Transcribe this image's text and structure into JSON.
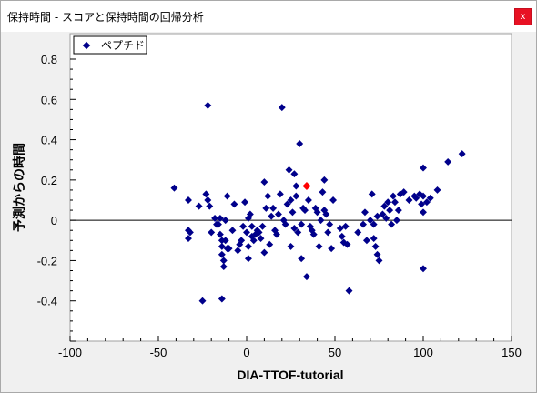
{
  "window": {
    "title": "保持時間 - スコアと保持時間の回帰分析",
    "close_label": "x"
  },
  "colors": {
    "series": "#00008b",
    "highlight": "#ff0000",
    "plot_background": "#ffffff",
    "chart_background": "#f0f0f0",
    "zero_line": "#000000"
  },
  "chart_data": {
    "type": "scatter",
    "title": "",
    "xlabel": "DIA-TTOF-tutorial",
    "ylabel": "予測からの時間",
    "xlim": [
      -100,
      150
    ],
    "ylim": [
      -0.6,
      0.8
    ],
    "xticks": [
      -100,
      -50,
      0,
      50,
      100,
      150
    ],
    "yticks": [
      0.8,
      0.6,
      0.4,
      0.2,
      0,
      -0.2,
      -0.4
    ],
    "legend": {
      "position": "top-left",
      "entries": [
        "ペプチド"
      ]
    },
    "reference_line_y": 0,
    "grid": false,
    "series": [
      {
        "name": "ペプチド",
        "color": "#00008b",
        "marker": "diamond",
        "points": [
          [
            -41,
            0.16
          ],
          [
            -33,
            0.1
          ],
          [
            -33,
            -0.05
          ],
          [
            -32,
            -0.06
          ],
          [
            -33,
            -0.09
          ],
          [
            -27,
            0.07
          ],
          [
            -25,
            -0.4
          ],
          [
            -23,
            0.13
          ],
          [
            -22,
            0.57
          ],
          [
            -22,
            0.1
          ],
          [
            -21,
            0.07
          ],
          [
            -20,
            -0.06
          ],
          [
            -18,
            0.01
          ],
          [
            -17,
            -0.02
          ],
          [
            -16,
            -0.02
          ],
          [
            -15,
            0.01
          ],
          [
            -15,
            -0.07
          ],
          [
            -14,
            -0.1
          ],
          [
            -14,
            -0.13
          ],
          [
            -14,
            -0.17
          ],
          [
            -14,
            -0.39
          ],
          [
            -13,
            -0.2
          ],
          [
            -13,
            -0.23
          ],
          [
            -12,
            0.0
          ],
          [
            -12,
            -0.1
          ],
          [
            -11,
            0.12
          ],
          [
            -11,
            -0.14
          ],
          [
            -10,
            -0.14
          ],
          [
            -8,
            -0.05
          ],
          [
            -7,
            0.08
          ],
          [
            -5,
            -0.15
          ],
          [
            -4,
            -0.12
          ],
          [
            -3,
            -0.1
          ],
          [
            -2,
            -0.03
          ],
          [
            -1,
            0.09
          ],
          [
            0,
            -0.06
          ],
          [
            1,
            0.01
          ],
          [
            1,
            -0.13
          ],
          [
            1,
            -0.19
          ],
          [
            2,
            0.03
          ],
          [
            3,
            -0.03
          ],
          [
            3,
            -0.08
          ],
          [
            4,
            -0.1
          ],
          [
            5,
            -0.07
          ],
          [
            6,
            -0.05
          ],
          [
            7,
            -0.06
          ],
          [
            8,
            -0.09
          ],
          [
            9,
            -0.03
          ],
          [
            10,
            0.19
          ],
          [
            10,
            -0.16
          ],
          [
            11,
            0.06
          ],
          [
            12,
            0.12
          ],
          [
            13,
            -0.12
          ],
          [
            14,
            0.02
          ],
          [
            15,
            0.06
          ],
          [
            16,
            -0.05
          ],
          [
            17,
            -0.07
          ],
          [
            18,
            0.03
          ],
          [
            19,
            0.13
          ],
          [
            20,
            0.56
          ],
          [
            21,
            0.0
          ],
          [
            22,
            -0.02
          ],
          [
            23,
            0.08
          ],
          [
            24,
            0.25
          ],
          [
            25,
            0.1
          ],
          [
            25,
            -0.13
          ],
          [
            26,
            0.04
          ],
          [
            27,
            -0.04
          ],
          [
            27,
            0.23
          ],
          [
            28,
            0.17
          ],
          [
            28,
            0.12
          ],
          [
            29,
            -0.06
          ],
          [
            30,
            0.38
          ],
          [
            31,
            -0.02
          ],
          [
            31,
            -0.19
          ],
          [
            32,
            0.06
          ],
          [
            33,
            0.05
          ],
          [
            34,
            -0.28
          ],
          [
            35,
            0.1
          ],
          [
            36,
            -0.03
          ],
          [
            37,
            -0.05
          ],
          [
            38,
            -0.07
          ],
          [
            39,
            0.06
          ],
          [
            40,
            0.04
          ],
          [
            41,
            -0.13
          ],
          [
            42,
            0.0
          ],
          [
            43,
            0.14
          ],
          [
            44,
            0.05
          ],
          [
            44,
            0.2
          ],
          [
            45,
            0.03
          ],
          [
            46,
            -0.06
          ],
          [
            47,
            -0.02
          ],
          [
            48,
            -0.14
          ],
          [
            49,
            0.1
          ],
          [
            53,
            -0.04
          ],
          [
            54,
            -0.08
          ],
          [
            55,
            -0.11
          ],
          [
            56,
            -0.03
          ],
          [
            57,
            -0.12
          ],
          [
            58,
            -0.35
          ],
          [
            63,
            -0.06
          ],
          [
            66,
            -0.02
          ],
          [
            67,
            0.04
          ],
          [
            68,
            -0.1
          ],
          [
            70,
            0.0
          ],
          [
            71,
            0.13
          ],
          [
            72,
            -0.02
          ],
          [
            72,
            -0.09
          ],
          [
            73,
            -0.13
          ],
          [
            74,
            -0.17
          ],
          [
            74,
            0.02
          ],
          [
            75,
            -0.2
          ],
          [
            77,
            0.03
          ],
          [
            78,
            0.07
          ],
          [
            79,
            0.01
          ],
          [
            80,
            0.09
          ],
          [
            81,
            0.05
          ],
          [
            82,
            -0.02
          ],
          [
            83,
            0.12
          ],
          [
            84,
            0.09
          ],
          [
            85,
            0.0
          ],
          [
            86,
            0.05
          ],
          [
            87,
            0.13
          ],
          [
            89,
            0.14
          ],
          [
            92,
            0.1
          ],
          [
            95,
            0.12
          ],
          [
            96,
            0.11
          ],
          [
            98,
            0.13
          ],
          [
            99,
            0.08
          ],
          [
            100,
            0.12
          ],
          [
            100,
            0.04
          ],
          [
            100,
            0.26
          ],
          [
            100,
            -0.24
          ],
          [
            102,
            0.09
          ],
          [
            104,
            0.11
          ],
          [
            108,
            0.15
          ],
          [
            114,
            0.29
          ],
          [
            122,
            0.33
          ]
        ]
      }
    ],
    "highlighted_point": {
      "x": 34,
      "y": 0.17,
      "color": "#ff0000"
    }
  }
}
